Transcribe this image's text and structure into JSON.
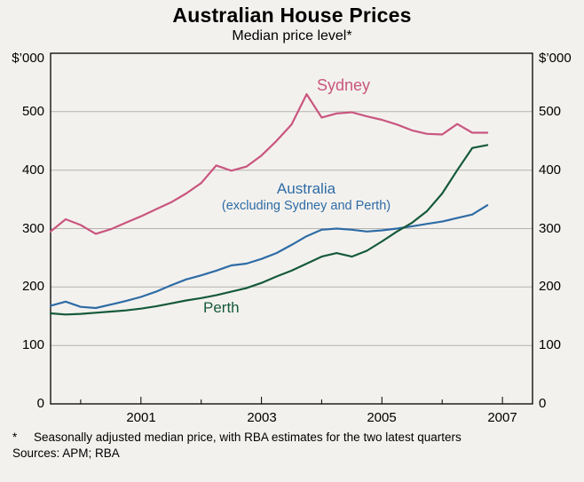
{
  "title": "Australian House Prices",
  "subtitle": "Median price level*",
  "labels": {
    "sydney": "Sydney",
    "australia_line1": "Australia",
    "australia_line2": "(excluding Sydney and Perth)",
    "perth": "Perth"
  },
  "footnote": {
    "marker": "*",
    "text": "Seasonally adjusted median price, with RBA estimates for the two latest quarters",
    "sources": "Sources: APM; RBA"
  },
  "chart_data": {
    "type": "line",
    "title": "Australian House Prices",
    "subtitle": "Median price level*",
    "ylabel": "$’000",
    "ylim": [
      0,
      600
    ],
    "xlim": [
      1999.5,
      2007.5
    ],
    "y_ticks": [
      0,
      100,
      200,
      300,
      400,
      500
    ],
    "gridlines": [
      100,
      200,
      300,
      400,
      500
    ],
    "x_ticks_labeled": [
      2001,
      2003,
      2005,
      2007
    ],
    "frequency": "quarterly",
    "x_start": 1999.5,
    "x_step": 0.25,
    "grid": "horizontal",
    "legend_position": "inline-annotations",
    "series": [
      {
        "name": "Sydney",
        "color": "#c9567f",
        "values": [
          295,
          316,
          306,
          291,
          299,
          310,
          321,
          333,
          345,
          360,
          378,
          408,
          399,
          406,
          425,
          450,
          478,
          530,
          490,
          497,
          499,
          492,
          486,
          478,
          468,
          462,
          461,
          479,
          464,
          464
        ]
      },
      {
        "name": "Australia (excluding Sydney and Perth)",
        "color": "#2e6ca5",
        "values": [
          168,
          175,
          166,
          164,
          170,
          176,
          183,
          192,
          203,
          213,
          220,
          228,
          237,
          240,
          248,
          258,
          272,
          287,
          298,
          300,
          298,
          295,
          297,
          300,
          304,
          308,
          312,
          318,
          324,
          340
        ]
      },
      {
        "name": "Perth",
        "color": "#155a3a",
        "values": [
          155,
          153,
          154,
          156,
          158,
          160,
          163,
          167,
          172,
          177,
          181,
          186,
          192,
          198,
          207,
          218,
          228,
          240,
          252,
          258,
          252,
          262,
          278,
          295,
          310,
          330,
          360,
          400,
          438,
          443
        ]
      }
    ]
  }
}
